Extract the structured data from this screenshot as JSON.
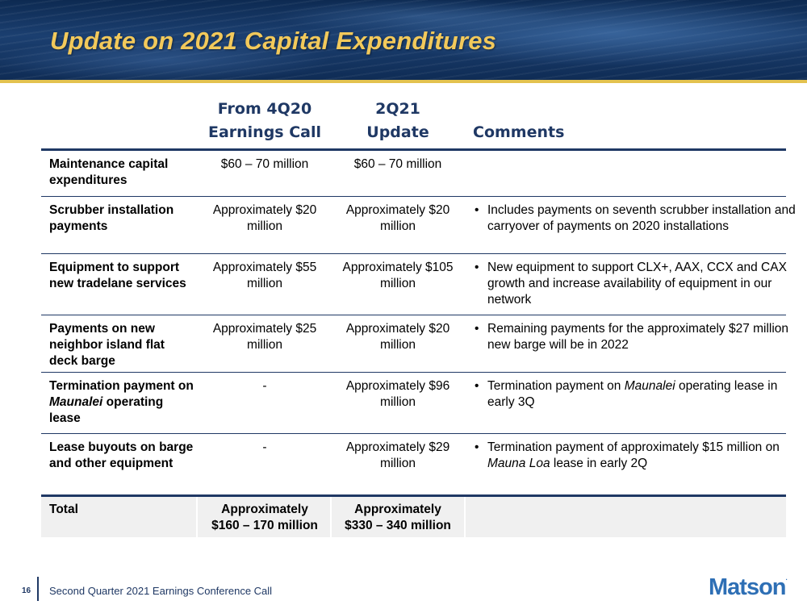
{
  "slide": {
    "title": "Update on 2021 Capital Expenditures",
    "page_number": "16",
    "footer_text": "Second Quarter 2021 Earnings Conference Call",
    "logo_text": "Matson",
    "logo_mark": ".",
    "accent_color": "#f2c95b",
    "navy_color": "#1f3864",
    "logo_color": "#2e6fb5"
  },
  "table": {
    "headers": {
      "col2": [
        "From 4Q20",
        "Earnings Call"
      ],
      "col3": [
        "2Q21",
        "Update"
      ],
      "col4": "Comments"
    },
    "rows": [
      {
        "label": "Maintenance capital expenditures",
        "prior": "$60 – 70 million",
        "update": "$60 – 70 million",
        "comment": ""
      },
      {
        "label": "Scrubber installation payments",
        "prior": "Approximately $20 million",
        "update": "Approximately $20 million",
        "comment": "Includes payments on seventh scrubber installation and carryover of payments on 2020 installations"
      },
      {
        "label": "Equipment to support new tradelane services",
        "prior": "Approximately $55 million",
        "update": "Approximately $105 million",
        "comment": "New equipment to support CLX+, AAX, CCX and CAX growth and increase availability of equipment in our network"
      },
      {
        "label": "Payments on new neighbor island flat deck barge",
        "prior": "Approximately $25 million",
        "update": "Approximately $20 million",
        "comment": "Remaining payments for the approximately $27 million new barge will be in 2022"
      },
      {
        "label_pre": "Termination payment on ",
        "label_em": "Maunalei",
        "label_post": " operating lease",
        "prior": "-",
        "update": "Approximately $96 million",
        "comment_pre": "Termination payment on ",
        "comment_em": "Maunalei",
        "comment_post": " operating lease in early 3Q"
      },
      {
        "label": "Lease buyouts on barge and other equipment",
        "prior": "-",
        "update": "Approximately $29 million",
        "comment_pre": "Termination payment of approximately $15 million on ",
        "comment_em": "Mauna Loa",
        "comment_post": " lease in early 2Q"
      }
    ],
    "total": {
      "label": "Total",
      "prior_line1": "Approximately",
      "prior_line2": "$160 – 170 million",
      "update_line1": "Approximately",
      "update_line2": "$330 – 340 million"
    },
    "bullet_glyph": "•"
  }
}
